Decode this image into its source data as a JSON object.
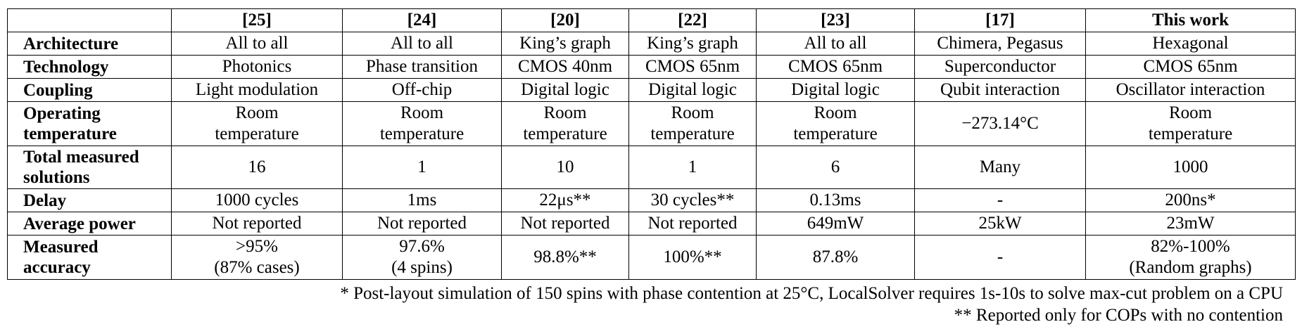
{
  "table": {
    "corner": "",
    "columns": [
      "[25]",
      "[24]",
      "[20]",
      "[22]",
      "[23]",
      "[17]",
      "This work"
    ],
    "rows": [
      {
        "label": [
          "Architecture"
        ],
        "cells": [
          [
            "All to all"
          ],
          [
            "All to all"
          ],
          [
            "King’s graph"
          ],
          [
            "King’s graph"
          ],
          [
            "All to all"
          ],
          [
            "Chimera, Pegasus"
          ],
          [
            "Hexagonal"
          ]
        ]
      },
      {
        "label": [
          "Technology"
        ],
        "cells": [
          [
            "Photonics"
          ],
          [
            "Phase transition"
          ],
          [
            "CMOS 40nm"
          ],
          [
            "CMOS 65nm"
          ],
          [
            "CMOS 65nm"
          ],
          [
            "Superconductor"
          ],
          [
            "CMOS 65nm"
          ]
        ]
      },
      {
        "label": [
          "Coupling"
        ],
        "cells": [
          [
            "Light modulation"
          ],
          [
            "Off-chip"
          ],
          [
            "Digital logic"
          ],
          [
            "Digital logic"
          ],
          [
            "Digital logic"
          ],
          [
            "Qubit interaction"
          ],
          [
            "Oscillator interaction"
          ]
        ]
      },
      {
        "label": [
          "Operating",
          "temperature"
        ],
        "cells": [
          [
            "Room",
            "temperature"
          ],
          [
            "Room",
            "temperature"
          ],
          [
            "Room",
            "temperature"
          ],
          [
            "Room",
            "temperature"
          ],
          [
            "Room",
            "temperature"
          ],
          [
            "−273.14°C"
          ],
          [
            "Room",
            "temperature"
          ]
        ]
      },
      {
        "label": [
          "Total measured",
          "solutions"
        ],
        "cells": [
          [
            "16"
          ],
          [
            "1"
          ],
          [
            "10"
          ],
          [
            "1"
          ],
          [
            "6"
          ],
          [
            "Many"
          ],
          [
            "1000"
          ]
        ]
      },
      {
        "label": [
          "Delay"
        ],
        "cells": [
          [
            "1000 cycles"
          ],
          [
            "1ms"
          ],
          [
            "22μs**"
          ],
          [
            "30 cycles**"
          ],
          [
            "0.13ms"
          ],
          [
            "-"
          ],
          [
            "200ns*"
          ]
        ]
      },
      {
        "label": [
          "Average power"
        ],
        "cells": [
          [
            "Not reported"
          ],
          [
            "Not reported"
          ],
          [
            "Not reported"
          ],
          [
            "Not reported"
          ],
          [
            "649mW"
          ],
          [
            "25kW"
          ],
          [
            "23mW"
          ]
        ]
      },
      {
        "label": [
          "Measured",
          "accuracy"
        ],
        "cells": [
          [
            ">95%",
            "(87% cases)"
          ],
          [
            "97.6%",
            "(4 spins)"
          ],
          [
            "98.8%**"
          ],
          [
            "100%**"
          ],
          [
            "87.8%"
          ],
          [
            "-"
          ],
          [
            "82%-100%",
            "(Random graphs)"
          ]
        ]
      }
    ]
  },
  "notes": [
    "* Post-layout simulation of 150 spins with phase contention at 25°C, LocalSolver requires 1s-10s to solve max-cut problem on a CPU",
    "** Reported only for COPs with no contention"
  ]
}
